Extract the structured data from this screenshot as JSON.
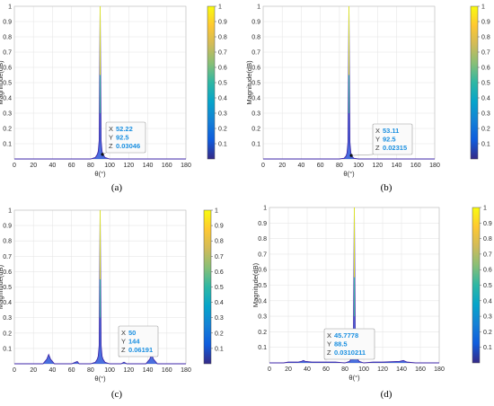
{
  "figure": {
    "panel_labels": [
      "(a)",
      "(b)",
      "(c)",
      "(d)"
    ],
    "colorbar_ticks": [
      "0.1",
      "0.2",
      "0.3",
      "0.4",
      "0.5",
      "0.6",
      "0.7",
      "0.8",
      "0.9",
      "1"
    ],
    "colors": {
      "parula": [
        "#352a87",
        "#0f5cdd",
        "#1481d6",
        "#06a4ca",
        "#2eb7a4",
        "#87bf77",
        "#d1bb59",
        "#fec832",
        "#f9fb0e"
      ],
      "floor_line": "#3e26a8",
      "peak": "#2a56d8",
      "datatip_text": "#1a8fe0"
    }
  },
  "chart_data": [
    {
      "type": "line",
      "panel": "(a)",
      "xlabel": "θ(°)",
      "ylabel": "Magnitude(dB)",
      "xlim": [
        0,
        180
      ],
      "ylim": [
        0,
        1
      ],
      "xticks": [
        0,
        20,
        40,
        60,
        80,
        100,
        120,
        140,
        160,
        180
      ],
      "yticks": [
        0.1,
        0.2,
        0.3,
        0.4,
        0.5,
        0.6,
        0.7,
        0.8,
        0.9,
        1
      ],
      "grid": true,
      "colorbar": true,
      "series": [
        {
          "x": [
            0,
            80,
            85,
            87,
            88,
            89,
            90,
            91,
            92,
            93,
            95,
            100,
            180
          ],
          "y": [
            0,
            0,
            0.01,
            0.03,
            0.05,
            0.12,
            1.0,
            0.12,
            0.05,
            0.03,
            0.01,
            0,
            0
          ]
        }
      ],
      "datatip": {
        "x_key": "X",
        "x": "52.22",
        "y_key": "Y",
        "y": "92.5",
        "z_key": "Z",
        "z": "0.03046",
        "point": [
          92.5,
          0.03
        ]
      }
    },
    {
      "type": "line",
      "panel": "(b)",
      "xlabel": "θ(°)",
      "ylabel": "Magnitude(dB)",
      "xlim": [
        0,
        180
      ],
      "ylim": [
        0,
        1
      ],
      "xticks": [
        0,
        20,
        40,
        60,
        80,
        100,
        120,
        140,
        160,
        180
      ],
      "yticks": [
        0.1,
        0.2,
        0.3,
        0.4,
        0.5,
        0.6,
        0.7,
        0.8,
        0.9,
        1
      ],
      "grid": true,
      "colorbar": true,
      "series": [
        {
          "x": [
            0,
            80,
            85,
            87,
            88,
            89,
            90,
            91,
            92,
            93,
            95,
            100,
            180
          ],
          "y": [
            0,
            0,
            0.005,
            0.02,
            0.04,
            0.11,
            1.0,
            0.11,
            0.04,
            0.02,
            0.005,
            0,
            0
          ]
        }
      ],
      "datatip": {
        "x_key": "X",
        "x": "53.11",
        "y_key": "Y",
        "y": "92.5",
        "z_key": "Z",
        "z": "0.02315",
        "point": [
          92.5,
          0.023
        ]
      }
    },
    {
      "type": "line",
      "panel": "(c)",
      "xlabel": "θ(°)",
      "ylabel": "Magnitude(dB)",
      "xlim": [
        0,
        180
      ],
      "ylim": [
        0,
        1
      ],
      "xticks": [
        0,
        20,
        40,
        60,
        80,
        100,
        120,
        140,
        160,
        180
      ],
      "yticks": [
        0.1,
        0.2,
        0.3,
        0.4,
        0.5,
        0.6,
        0.7,
        0.8,
        0.9,
        1
      ],
      "grid": true,
      "colorbar": true,
      "series": [
        {
          "x": [
            0,
            30,
            34,
            36,
            38,
            42,
            60,
            64,
            66,
            68,
            80,
            85,
            87,
            88,
            89,
            90,
            91,
            92,
            93,
            95,
            100,
            112,
            115,
            118,
            138,
            142,
            144,
            146,
            150,
            180
          ],
          "y": [
            0,
            0,
            0.03,
            0.06,
            0.03,
            0,
            0,
            0.01,
            0.015,
            0,
            0,
            0.01,
            0.03,
            0.05,
            0.12,
            1.0,
            0.12,
            0.05,
            0.03,
            0.01,
            0,
            0,
            0.01,
            0,
            0,
            0.03,
            0.06,
            0.03,
            0,
            0
          ]
        }
      ],
      "datatip": {
        "x_key": "X",
        "x": "50",
        "y_key": "Y",
        "y": "144",
        "z_key": "Z",
        "z": "0.06191",
        "point": [
          144,
          0.062
        ]
      }
    },
    {
      "type": "line",
      "panel": "(d)",
      "xlabel": "θ(°)",
      "ylabel": "Magnitude(dB)",
      "xlim": [
        0,
        180
      ],
      "ylim": [
        0,
        1
      ],
      "xticks": [
        0,
        20,
        40,
        60,
        80,
        100,
        120,
        140,
        160,
        180
      ],
      "yticks": [
        0.1,
        0.2,
        0.3,
        0.4,
        0.5,
        0.6,
        0.7,
        0.8,
        0.9,
        1
      ],
      "grid": true,
      "colorbar": true,
      "series": [
        {
          "x": [
            0,
            15,
            20,
            30,
            34,
            36,
            38,
            45,
            55,
            60,
            70,
            80,
            85,
            87,
            88,
            89,
            90,
            91,
            92,
            93,
            95,
            100,
            110,
            120,
            138,
            142,
            144,
            146,
            155,
            180
          ],
          "y": [
            0,
            0,
            0.005,
            0.005,
            0.01,
            0.015,
            0.01,
            0.005,
            0.005,
            0.005,
            0.005,
            0,
            0.01,
            0.03,
            0.05,
            0.12,
            1.0,
            0.12,
            0.05,
            0.03,
            0.01,
            0,
            0.005,
            0.005,
            0.01,
            0.015,
            0.01,
            0.005,
            0,
            0
          ]
        }
      ],
      "datatip": {
        "x_key": "X",
        "x": "45.7778",
        "y_key": "Y",
        "y": "88.5",
        "z_key": "Z",
        "z": "0.0310211",
        "point": [
          88.5,
          0.031
        ]
      }
    }
  ]
}
